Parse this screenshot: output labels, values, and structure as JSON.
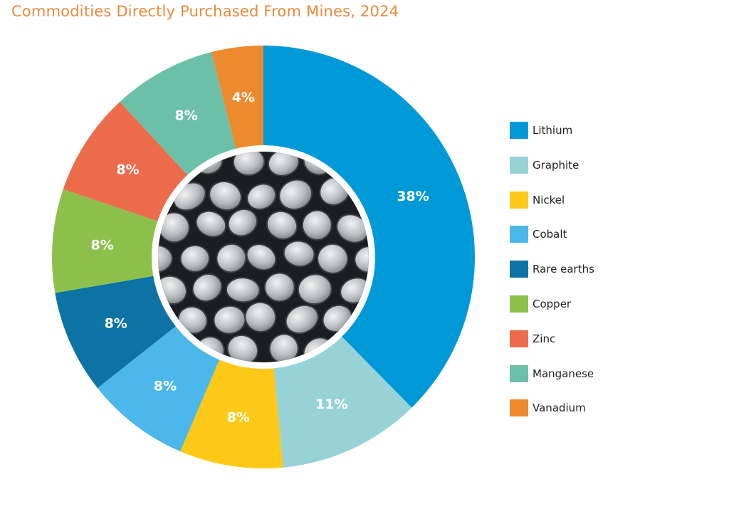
{
  "chart_data": {
    "type": "pie",
    "title": "Commodities Directly Purchased From Mines, 2024",
    "categories": [
      "Lithium",
      "Graphite",
      "Nickel",
      "Cobalt",
      "Rare earths",
      "Copper",
      "Zinc",
      "Manganese",
      "Vanadium"
    ],
    "values": [
      38,
      11,
      8,
      8,
      8,
      8,
      8,
      8,
      4
    ],
    "labels": [
      "38%",
      "11%",
      "8%",
      "8%",
      "8%",
      "8%",
      "8%",
      "8%",
      "4%"
    ],
    "colors": [
      "#0099D8",
      "#96D2D6",
      "#FDC918",
      "#4CB7EA",
      "#0D73A5",
      "#8CC04B",
      "#EC6B4A",
      "#6CC0A7",
      "#EE8A2E"
    ],
    "legend_position": "right"
  }
}
